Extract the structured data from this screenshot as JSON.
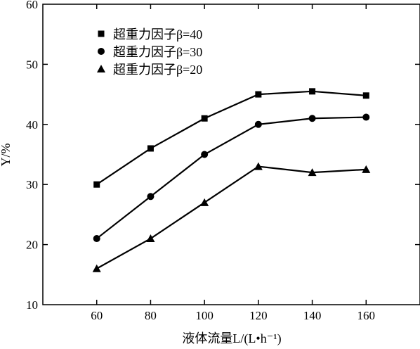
{
  "chart_data": {
    "type": "line",
    "xlabel": "液体流量L/(L•h⁻¹)",
    "ylabel": "Y/%",
    "x": [
      60,
      80,
      100,
      120,
      140,
      160
    ],
    "xlim": [
      40,
      180
    ],
    "ylim": [
      10,
      60
    ],
    "xticks": [
      60,
      80,
      100,
      120,
      140,
      160
    ],
    "yticks": [
      10,
      20,
      30,
      40,
      50,
      60
    ],
    "grid": false,
    "legend_position": "top-left",
    "series": [
      {
        "name": "超重力因子β=40",
        "marker": "square",
        "values": [
          30,
          36,
          41,
          45,
          45.5,
          44.8
        ]
      },
      {
        "name": "超重力因子β=30",
        "marker": "circle",
        "values": [
          21,
          28,
          35,
          40,
          41,
          41.2
        ]
      },
      {
        "name": "超重力因子β=20",
        "marker": "triangle",
        "values": [
          16,
          21,
          27,
          33,
          32,
          32.5
        ]
      }
    ]
  }
}
